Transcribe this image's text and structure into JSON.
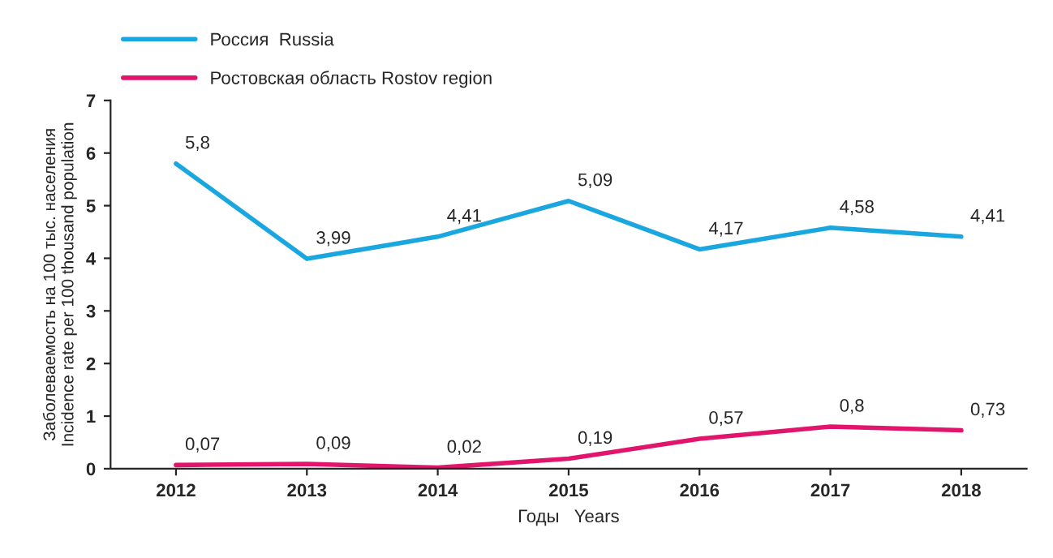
{
  "chart_data": {
    "type": "line",
    "categories": [
      "2012",
      "2013",
      "2014",
      "2015",
      "2016",
      "2017",
      "2018"
    ],
    "series": [
      {
        "name": "Россия  Russia",
        "color": "#1aa7e0",
        "values": [
          5.8,
          3.99,
          4.41,
          5.09,
          4.17,
          4.58,
          4.41
        ],
        "value_labels": [
          "5,8",
          "3,99",
          "4,41",
          "5,09",
          "4,17",
          "4,58",
          "4,41"
        ]
      },
      {
        "name": "Ростовская область Rostov region",
        "color": "#e0156b",
        "values": [
          0.07,
          0.09,
          0.02,
          0.19,
          0.57,
          0.8,
          0.73
        ],
        "value_labels": [
          "0,07",
          "0,09",
          "0,02",
          "0,19",
          "0,57",
          "0,8",
          "0,73"
        ]
      }
    ],
    "xlabel": "Годы   Years",
    "ylabel": "Заболеваемость на 100 тыс. населения\nIncidence rate per 100 thousand population",
    "ylim": [
      0,
      7
    ],
    "yticks": [
      0,
      1,
      2,
      3,
      4,
      5,
      6,
      7
    ],
    "grid": false,
    "legend": "top left",
    "marker": "none",
    "line_style": "solid"
  }
}
